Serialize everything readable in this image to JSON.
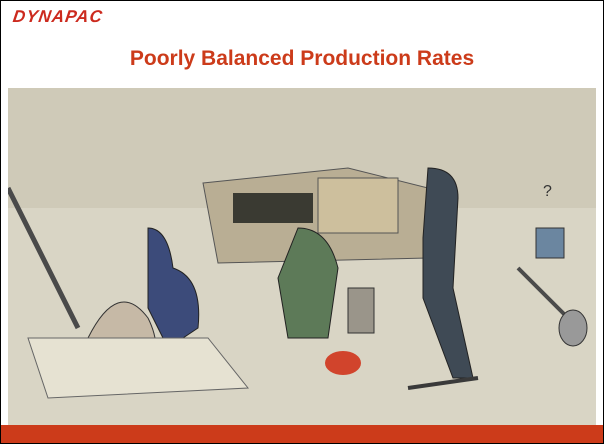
{
  "header": {
    "logo": "DYNAPAC",
    "title": "Poorly Balanced Production Rates"
  },
  "illustration": {
    "mark": "?"
  }
}
